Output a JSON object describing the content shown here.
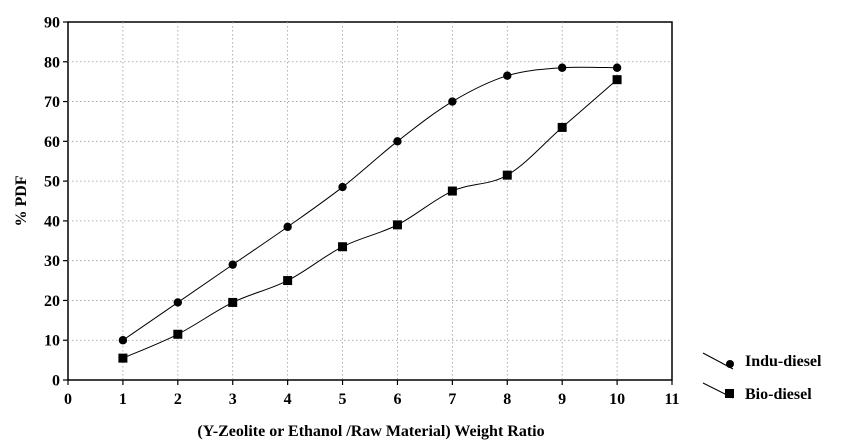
{
  "chart_data": {
    "type": "scatter",
    "title": "",
    "xlabel": "(Y-Zeolite or Ethanol /Raw Material) Weight Ratio",
    "ylabel": "% PDF",
    "xlim": [
      0,
      11
    ],
    "ylim": [
      0,
      90
    ],
    "xticks": [
      "0",
      "1",
      "2",
      "3",
      "4",
      "5",
      "6",
      "7",
      "8",
      "9",
      "10",
      "11"
    ],
    "yticks": [
      "0",
      "10",
      "20",
      "30",
      "40",
      "50",
      "60",
      "70",
      "80",
      "90"
    ],
    "grid": true,
    "legend_position": "bottom-right",
    "series": [
      {
        "name": "Indu-diesel",
        "marker": "circle",
        "fit_line": true,
        "x": [
          1,
          2,
          3,
          4,
          5,
          6,
          7,
          8,
          9,
          10
        ],
        "y": [
          10,
          19.5,
          29,
          38.5,
          48.5,
          60,
          70,
          76.5,
          78.5,
          78.5
        ]
      },
      {
        "name": "Bio-diesel",
        "marker": "square",
        "fit_line": true,
        "x": [
          1,
          2,
          3,
          4,
          5,
          6,
          7,
          8,
          9,
          10
        ],
        "y": [
          5.5,
          11.5,
          19.5,
          25,
          33.5,
          39,
          47.5,
          51.5,
          63.5,
          75.5
        ]
      }
    ]
  }
}
